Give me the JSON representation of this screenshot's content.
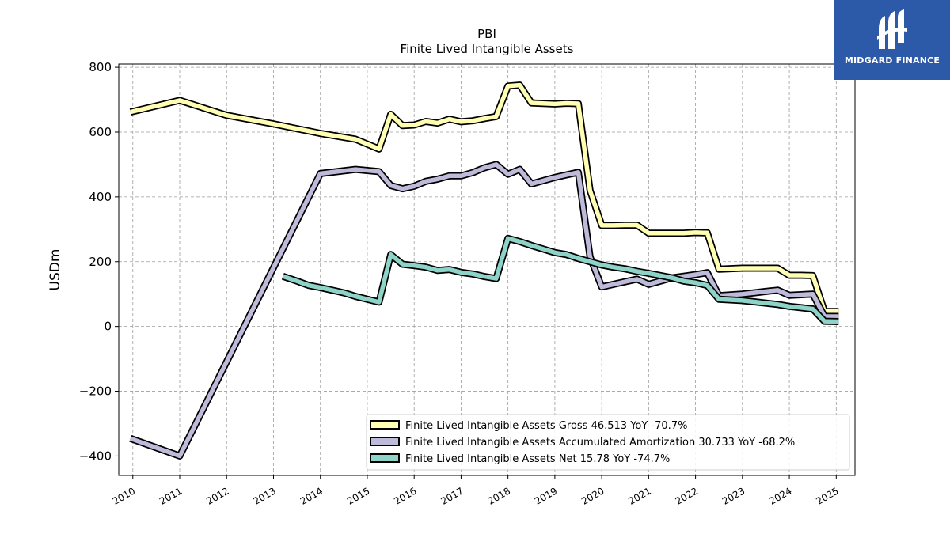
{
  "chart_data": {
    "type": "line",
    "title": "PBI",
    "subtitle": "Finite Lived Intangible Assets",
    "ylabel": "USDm",
    "xlabel": "",
    "xlim": [
      2009.7,
      2025.4
    ],
    "ylim": [
      -460,
      810
    ],
    "yticks": [
      -400,
      -200,
      0,
      200,
      400,
      600,
      800
    ],
    "ytick_labels": [
      "−400",
      "−200",
      "0",
      "200",
      "400",
      "600",
      "800"
    ],
    "xticks": [
      2010,
      2011,
      2012,
      2013,
      2014,
      2015,
      2016,
      2017,
      2018,
      2019,
      2020,
      2021,
      2022,
      2023,
      2024,
      2025
    ],
    "xtick_labels": [
      "2010",
      "2011",
      "2012",
      "2013",
      "2014",
      "2015",
      "2016",
      "2017",
      "2018",
      "2019",
      "2020",
      "2021",
      "2022",
      "2023",
      "2024",
      "2025"
    ],
    "grid": true,
    "legend_position": "lower-right",
    "series": [
      {
        "name": "Finite Lived Intangible Assets Gross  46.513 YoY -70.7%",
        "color": "#ffffb3",
        "points": [
          [
            2009.95,
            662
          ],
          [
            2011.0,
            698
          ],
          [
            2012.0,
            652
          ],
          [
            2013.0,
            625
          ],
          [
            2014.0,
            596
          ],
          [
            2014.75,
            578
          ],
          [
            2015.25,
            548
          ],
          [
            2015.5,
            655
          ],
          [
            2015.75,
            620
          ],
          [
            2016.0,
            622
          ],
          [
            2016.25,
            633
          ],
          [
            2016.5,
            628
          ],
          [
            2016.75,
            640
          ],
          [
            2017.0,
            632
          ],
          [
            2017.25,
            635
          ],
          [
            2017.5,
            642
          ],
          [
            2017.75,
            648
          ],
          [
            2018.0,
            742
          ],
          [
            2018.25,
            745
          ],
          [
            2018.5,
            690
          ],
          [
            2019.0,
            687
          ],
          [
            2019.25,
            689
          ],
          [
            2019.5,
            688
          ],
          [
            2019.75,
            420
          ],
          [
            2020.0,
            312
          ],
          [
            2020.25,
            312
          ],
          [
            2020.5,
            313
          ],
          [
            2020.75,
            313
          ],
          [
            2021.0,
            288
          ],
          [
            2021.5,
            288
          ],
          [
            2021.75,
            288
          ],
          [
            2022.0,
            290
          ],
          [
            2022.25,
            289
          ],
          [
            2022.5,
            177
          ],
          [
            2023.0,
            180
          ],
          [
            2023.25,
            180
          ],
          [
            2023.5,
            180
          ],
          [
            2023.75,
            180
          ],
          [
            2024.0,
            158
          ],
          [
            2024.25,
            158
          ],
          [
            2024.5,
            157
          ],
          [
            2024.75,
            46
          ],
          [
            2025.05,
            46
          ]
        ]
      },
      {
        "name": "Finite Lived Intangible Assets Accumulated Amortization  30.733 YoY -68.2%",
        "color": "#bebada",
        "points": [
          [
            2009.95,
            -346
          ],
          [
            2011.0,
            -400
          ],
          [
            2014.0,
            472
          ],
          [
            2014.75,
            485
          ],
          [
            2015.25,
            478
          ],
          [
            2015.5,
            435
          ],
          [
            2015.75,
            425
          ],
          [
            2016.0,
            433
          ],
          [
            2016.25,
            448
          ],
          [
            2016.5,
            455
          ],
          [
            2016.75,
            465
          ],
          [
            2017.0,
            465
          ],
          [
            2017.25,
            475
          ],
          [
            2017.5,
            490
          ],
          [
            2017.75,
            500
          ],
          [
            2018.0,
            470
          ],
          [
            2018.25,
            485
          ],
          [
            2018.5,
            440
          ],
          [
            2019.0,
            460
          ],
          [
            2019.25,
            468
          ],
          [
            2019.5,
            476
          ],
          [
            2019.75,
            215
          ],
          [
            2020.0,
            122
          ],
          [
            2020.25,
            130
          ],
          [
            2020.5,
            138
          ],
          [
            2020.75,
            146
          ],
          [
            2021.0,
            130
          ],
          [
            2021.5,
            150
          ],
          [
            2021.75,
            155
          ],
          [
            2022.0,
            160
          ],
          [
            2022.25,
            166
          ],
          [
            2022.5,
            95
          ],
          [
            2023.0,
            100
          ],
          [
            2023.25,
            104
          ],
          [
            2023.5,
            108
          ],
          [
            2023.75,
            112
          ],
          [
            2024.0,
            96
          ],
          [
            2024.25,
            98
          ],
          [
            2024.5,
            100
          ],
          [
            2024.75,
            31
          ],
          [
            2025.05,
            31
          ]
        ]
      },
      {
        "name": "Finite Lived Intangible Assets Net  15.78 YoY -74.7%",
        "color": "#8dd3c7",
        "points": [
          [
            2013.2,
            155
          ],
          [
            2013.5,
            140
          ],
          [
            2013.75,
            127
          ],
          [
            2014.0,
            120
          ],
          [
            2014.5,
            104
          ],
          [
            2014.75,
            93
          ],
          [
            2015.25,
            75
          ],
          [
            2015.5,
            222
          ],
          [
            2015.75,
            192
          ],
          [
            2016.0,
            188
          ],
          [
            2016.25,
            183
          ],
          [
            2016.5,
            173
          ],
          [
            2016.75,
            176
          ],
          [
            2017.0,
            167
          ],
          [
            2017.25,
            162
          ],
          [
            2017.5,
            154
          ],
          [
            2017.75,
            148
          ],
          [
            2018.0,
            272
          ],
          [
            2018.25,
            262
          ],
          [
            2018.5,
            250
          ],
          [
            2019.0,
            228
          ],
          [
            2019.25,
            222
          ],
          [
            2019.5,
            210
          ],
          [
            2019.75,
            200
          ],
          [
            2020.0,
            190
          ],
          [
            2020.25,
            183
          ],
          [
            2020.5,
            178
          ],
          [
            2020.75,
            170
          ],
          [
            2021.0,
            164
          ],
          [
            2021.5,
            150
          ],
          [
            2021.75,
            140
          ],
          [
            2022.0,
            135
          ],
          [
            2022.25,
            127
          ],
          [
            2022.5,
            84
          ],
          [
            2023.0,
            80
          ],
          [
            2023.25,
            76
          ],
          [
            2023.5,
            72
          ],
          [
            2023.75,
            68
          ],
          [
            2024.0,
            62
          ],
          [
            2024.25,
            58
          ],
          [
            2024.5,
            54
          ],
          [
            2024.75,
            16
          ],
          [
            2025.05,
            15
          ]
        ]
      }
    ]
  },
  "logo": {
    "text": "MIDGARD FINANCE",
    "color": "#2d5aa8"
  }
}
